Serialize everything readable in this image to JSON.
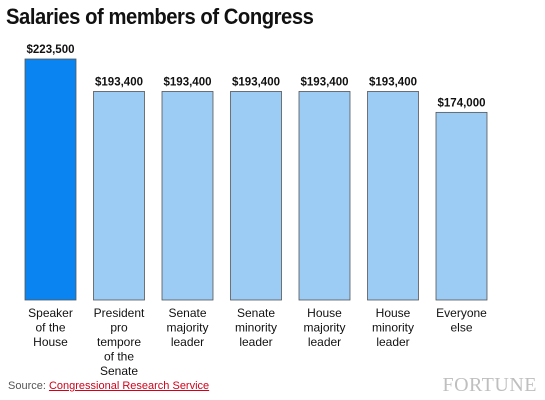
{
  "title": "Salaries of members of Congress",
  "chart_data": {
    "type": "bar",
    "title": "Salaries of members of Congress",
    "xlabel": "",
    "ylabel": "",
    "ylim": [
      0,
      223500
    ],
    "grid": false,
    "categories": [
      [
        "Speaker",
        "of the",
        "House"
      ],
      [
        "President",
        "pro",
        "tempore",
        "of the",
        "Senate"
      ],
      [
        "Senate",
        "majority",
        "leader"
      ],
      [
        "Senate",
        "minority",
        "leader"
      ],
      [
        "House",
        "majority",
        "leader"
      ],
      [
        "House",
        "minority",
        "leader"
      ],
      [
        "Everyone",
        "else"
      ]
    ],
    "values": [
      223500,
      193400,
      193400,
      193400,
      193400,
      193400,
      174000
    ],
    "labels": [
      "$223,500",
      "$193,400",
      "$193,400",
      "$193,400",
      "$193,400",
      "$193,400",
      "$174,000"
    ],
    "highlight_index": 0,
    "colors": {
      "highlight": "#0a84f0",
      "default": "#9ccbf3",
      "outline": "#555555"
    }
  },
  "source": {
    "prefix": "Source: ",
    "link": "Congressional Research Service"
  },
  "brand": "FORTUNE"
}
